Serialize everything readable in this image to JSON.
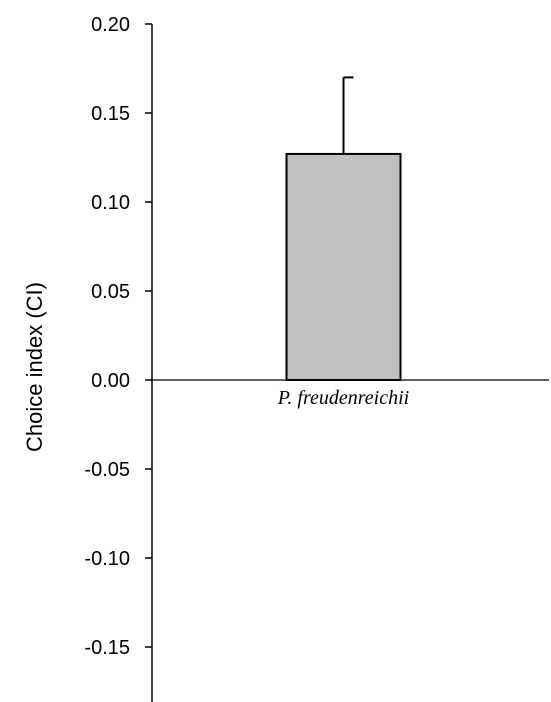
{
  "chart_data": {
    "type": "bar",
    "categories": [
      "P. freudenreichii"
    ],
    "values": [
      0.127
    ],
    "error_upper": [
      0.043
    ],
    "ylabel": "Choice index (CI)",
    "xlabel": "",
    "ylim": [
      -0.18,
      0.2
    ],
    "yticks": [
      0.2,
      0.15,
      0.1,
      0.05,
      0.0,
      -0.05,
      -0.1,
      -0.15
    ],
    "ytick_labels": [
      "0.20",
      "0.15",
      "0.10",
      "0.05",
      "0.00",
      "-0.05",
      "-0.10",
      "-0.15"
    ],
    "grid": false,
    "legend": "none",
    "bar_color": "#c0c0c0",
    "bar_edge_color": "#000000"
  }
}
